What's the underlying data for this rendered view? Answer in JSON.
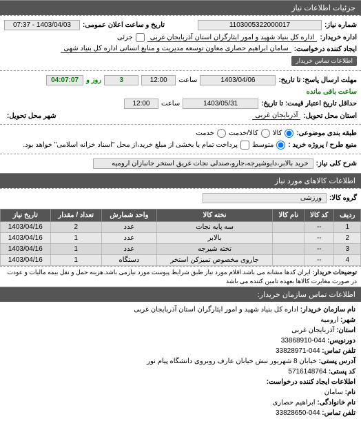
{
  "header": {
    "title": "جزئیات اطلاعات نیاز"
  },
  "top": {
    "req_no_label": "شماره نیاز:",
    "req_no": "1103005322000017",
    "announce_label": "تاریخ و ساعت اعلان عمومی:",
    "announce_date": "1403/04/03 - 07:37",
    "buyer_label": "اداره خریدار:",
    "buyer": "اداره کل بنیاد شهید و امور ایثارگران استان آذربایجان غربی",
    "partial_label": "جزئی",
    "requester_label": "ایجاد کننده درخواست:",
    "requester": "سامان ابراهیم حصاری معاون توسعه مدیریت و منابع انسانی اداره کل بنیاد شهی",
    "contact_btn": "اطلاعات تماس خریدار"
  },
  "deadlines": {
    "send_deadline_label": "مهلت ارسال پاسخ: تا تاریخ:",
    "send_date": "1403/04/06",
    "time_label": "ساعت",
    "send_time": "12:00",
    "days_suffix": "روز و",
    "days": "3",
    "remain_time": "04:07:07",
    "remain_label": "ساعت باقی مانده",
    "credit_label": "حداقل تاریخ اعتبار قیمت: تا تاریخ:",
    "credit_date": "1403/05/31",
    "credit_time": "12:00",
    "delivery_state_label": "استان محل تحویل:",
    "delivery_state": "آذربایجان غربی",
    "delivery_city_label": "شهر محل تحویل:",
    "delivery_city": ""
  },
  "budget": {
    "row_label": "طبقه بندی موضوعی:",
    "opt_goods": "کالا",
    "opt_service": "کالا/خدمت",
    "opt_svc": "خدمت",
    "purchase_type_label": "منبع طرح / پروژه خرید :",
    "opt_medium": "متوسط",
    "note": "پرداخت تمام یا بخشی از مبلغ خرید،از محل \"اسناد خزانه اسلامی\" خواهد بود."
  },
  "need": {
    "desc_label": "شرح کلی نیاز:",
    "desc": "خرید بالابر،دایوشیرجه،جارو،صندلی نجات غریق استخر جانبازان ارومیه"
  },
  "goods_header": "اطلاعات کالاهای مورد نیاز",
  "goods_group_label": "گروه کالا:",
  "goods_group": "ورزشی",
  "table": {
    "columns": [
      "ردیف",
      "کد کالا",
      "نام کالا",
      "نخته کالا",
      "واحد شمارش",
      "تعداد / مقدار",
      "تاریخ نیاز"
    ],
    "rows": [
      [
        "1",
        "--",
        "",
        "سه پایه نجات",
        "عدد",
        "2",
        "1403/04/16"
      ],
      [
        "2",
        "--",
        "",
        "بالابر",
        "عدد",
        "1",
        "1403/04/16"
      ],
      [
        "3",
        "--",
        "",
        "تخته شیرجه",
        "عدد",
        "1",
        "1403/04/16"
      ],
      [
        "4",
        "--",
        "",
        "جاروی مخصوص تمیزکن استخر",
        "دستگاه",
        "1",
        "1403/04/16"
      ]
    ]
  },
  "buyer_notes": {
    "label": "توضیحات خریدار:",
    "text": "ایران کدها مشابه می باشد.اقلام مورد نیاز طبق شرایط پیوست مورد نیازمی باشد.هزینه حمل و نقل بیمه مالیات و عودت در صورت مغایرت کالاها بعهده تامین کننده می باشد"
  },
  "contact_header": "اطلاعات تماس سازمان خریدار:",
  "contact": {
    "org_label": "نام سازمان خریدار:",
    "org": "اداره کل بنیاد شهید و امور ایثارگران استان آذربایجان غربی",
    "city_label": "شهر:",
    "city": "ارومیه",
    "province_label": "استان:",
    "province": "آذربایجان غربی",
    "fax_label": "دورنویس:",
    "fax": "044-33868910",
    "phone_label": "تلفن تماس:",
    "phone": "044-33828971",
    "address_label": "آدرس پستی:",
    "address": "خیابان 8 شهریور نبش خیابان عارف روبروی دانشگاه پیام نور",
    "postal_label": "کد پستی:",
    "postal": "5716148764",
    "creator_header": "اطلاعات ایجاد کننده درخواست:",
    "name_label": "نام:",
    "name": "سامان",
    "family_label": "نام خانوادگی:",
    "family": "ابراهیم حصاری",
    "phone2_label": "تلفن تماس:",
    "phone2": "044-33828650"
  }
}
